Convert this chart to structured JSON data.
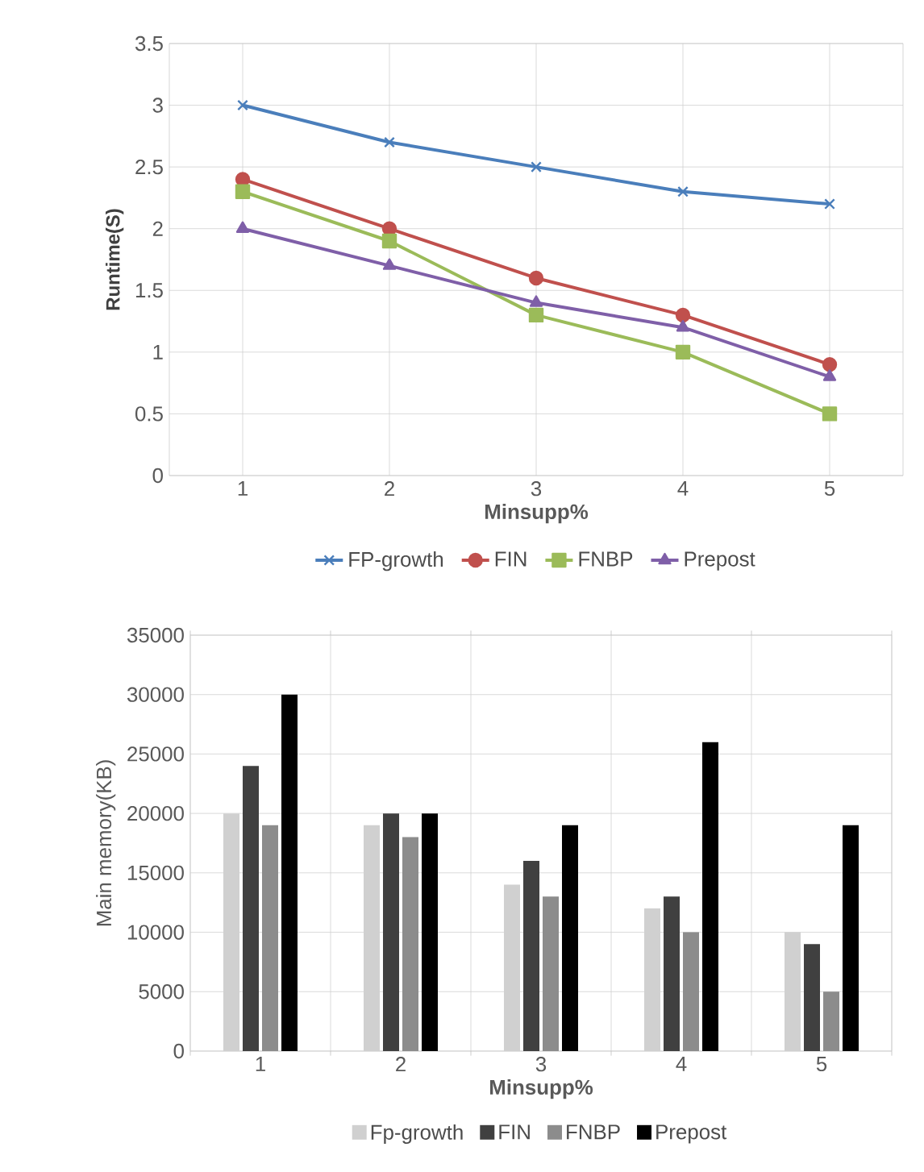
{
  "chart_data": [
    {
      "type": "line",
      "xlabel": "Minsupp%",
      "ylabel": "Runtime(S)",
      "categories": [
        "1",
        "2",
        "3",
        "4",
        "5"
      ],
      "series": [
        {
          "name": "FP-growth",
          "color": "#4a7ebb",
          "marker": "cross",
          "values": [
            3,
            2.7,
            2.5,
            2.3,
            2.2
          ]
        },
        {
          "name": "FIN",
          "color": "#c0504d",
          "marker": "circle",
          "values": [
            2.4,
            2.0,
            1.6,
            1.3,
            0.9
          ]
        },
        {
          "name": "FNBP",
          "color": "#9bbb59",
          "marker": "square",
          "values": [
            2.3,
            1.9,
            1.3,
            1.0,
            0.5
          ]
        },
        {
          "name": "Prepost",
          "color": "#7f5fa8",
          "marker": "triangle",
          "values": [
            2.0,
            1.7,
            1.4,
            1.2,
            0.8
          ]
        }
      ],
      "ylim": [
        0,
        3.5
      ],
      "yticks": [
        0,
        0.5,
        1,
        1.5,
        2,
        2.5,
        3,
        3.5
      ],
      "grid": true,
      "legend": "bottom"
    },
    {
      "type": "bar",
      "xlabel": "Minsupp%",
      "ylabel": "Main memory(KB)",
      "categories": [
        "1",
        "2",
        "3",
        "4",
        "5"
      ],
      "series": [
        {
          "name": "Fp-growth",
          "color": "#d0d0d0",
          "values": [
            20000,
            19000,
            14000,
            12000,
            10000
          ]
        },
        {
          "name": "FIN",
          "color": "#404040",
          "values": [
            24000,
            20000,
            16000,
            13000,
            9000
          ]
        },
        {
          "name": "FNBP",
          "color": "#8c8c8c",
          "values": [
            19000,
            18000,
            13000,
            10000,
            5000
          ]
        },
        {
          "name": "Prepost",
          "color": "#000000",
          "values": [
            30000,
            20000,
            19000,
            26000,
            19000
          ]
        }
      ],
      "ylim": [
        0,
        35000
      ],
      "yticks": [
        0,
        5000,
        10000,
        15000,
        20000,
        25000,
        30000,
        35000
      ],
      "grid": true,
      "legend": "bottom"
    }
  ]
}
